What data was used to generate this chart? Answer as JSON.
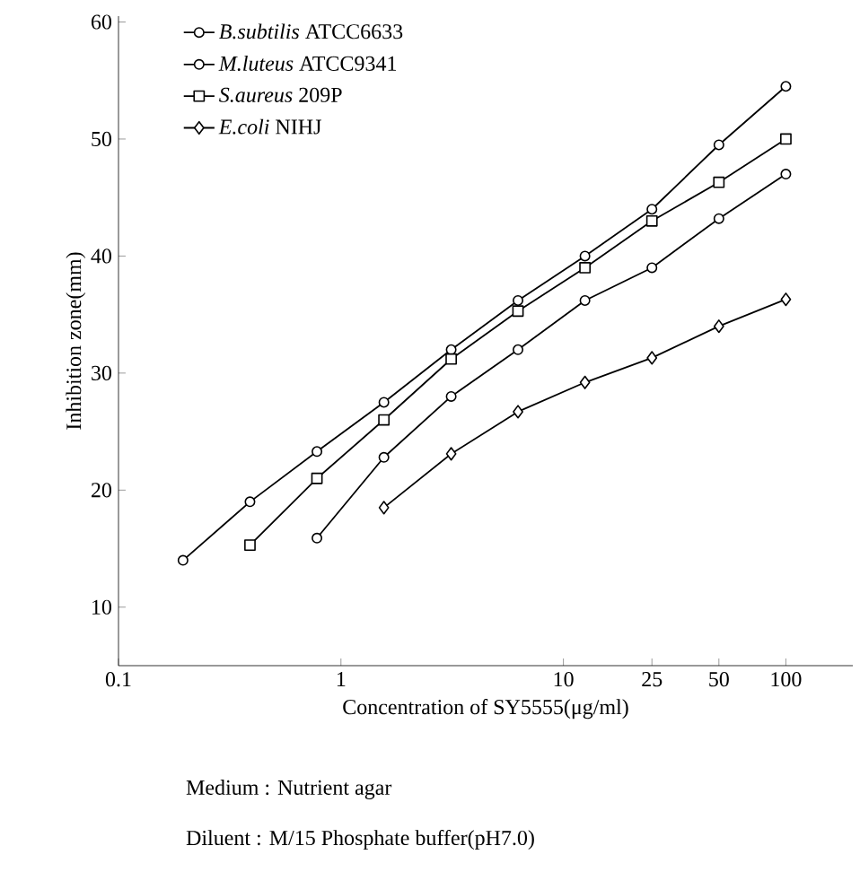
{
  "chart_data": {
    "type": "line",
    "xlabel": "Concentration of SY5555(μg/ml)",
    "ylabel": "Inhibition zone(mm)",
    "annotations": [
      "Medium : Nutrient agar",
      "Diluent : M/15 Phosphate buffer(pH7.0)"
    ],
    "log": "x",
    "xlim": [
      0.1,
      200
    ],
    "ylim": [
      5,
      60.5
    ],
    "xticks": [
      0.1,
      1,
      10,
      25,
      50,
      100
    ],
    "yticks": [
      10,
      20,
      30,
      40,
      50,
      60
    ],
    "legend": "top left",
    "line_style": "solid",
    "grid": false,
    "series": [
      {
        "name": "*B.subtilis* ATCC6633",
        "color": "#000000",
        "marker": "circle",
        "x": [
          0.195,
          0.39,
          0.78,
          1.56,
          3.13,
          6.25,
          12.5,
          25,
          50,
          100
        ],
        "values": [
          14,
          19,
          23.3,
          27.5,
          32,
          36.2,
          40,
          44,
          49.5,
          54.5
        ]
      },
      {
        "name": "*M.luteus* ATCC9341",
        "color": "#000000",
        "marker": "circle",
        "x": [
          0.78,
          1.56,
          3.13,
          6.25,
          12.5,
          25,
          50,
          100
        ],
        "values": [
          15.9,
          22.8,
          28,
          32,
          36.2,
          39,
          43.2,
          47
        ]
      },
      {
        "name": "*S.aureus* 209P",
        "color": "#000000",
        "marker": "square",
        "x": [
          0.39,
          0.78,
          1.56,
          3.13,
          6.25,
          12.5,
          25,
          50,
          100
        ],
        "values": [
          15.3,
          21,
          26,
          31.2,
          35.3,
          39,
          43,
          46.3,
          50
        ]
      },
      {
        "name": "*E.coli* NIHJ",
        "color": "#000000",
        "marker": "diamond",
        "x": [
          1.56,
          3.13,
          6.25,
          12.5,
          25,
          50,
          100
        ],
        "values": [
          18.5,
          23.1,
          26.7,
          29.2,
          31.3,
          34,
          36.3
        ]
      }
    ]
  }
}
